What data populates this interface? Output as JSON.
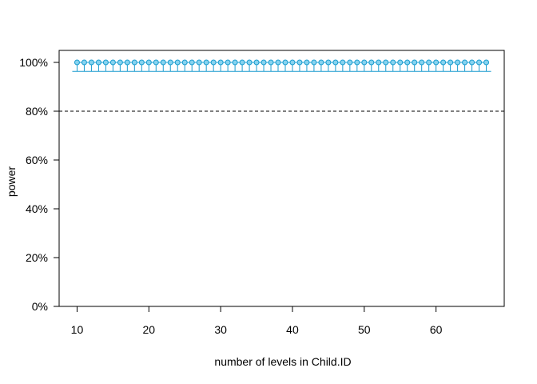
{
  "chart_data": {
    "type": "scatter",
    "title": "",
    "xlabel": "number of levels in Child.ID",
    "ylabel": "power",
    "xlim": [
      10,
      67
    ],
    "ylim": [
      0,
      100
    ],
    "x_ticks": [
      10,
      20,
      30,
      40,
      50,
      60
    ],
    "y_ticks": [
      "0%",
      "20%",
      "40%",
      "60%",
      "80%",
      "100%"
    ],
    "reference_line": {
      "y": 80,
      "style": "dashed"
    },
    "series": [
      {
        "x": [
          10,
          11,
          12,
          13,
          14,
          15,
          16,
          17,
          18,
          19,
          20,
          21,
          22,
          23,
          24,
          25,
          26,
          27,
          28,
          29,
          30,
          31,
          32,
          33,
          34,
          35,
          36,
          37,
          38,
          39,
          40,
          41,
          42,
          43,
          44,
          45,
          46,
          47,
          48,
          49,
          50,
          51,
          52,
          53,
          54,
          55,
          56,
          57,
          58,
          59,
          60,
          61,
          62,
          63,
          64,
          65,
          66,
          67
        ],
        "values": [
          100,
          100,
          100,
          100,
          100,
          100,
          100,
          100,
          100,
          100,
          100,
          100,
          100,
          100,
          100,
          100,
          100,
          100,
          100,
          100,
          100,
          100,
          100,
          100,
          100,
          100,
          100,
          100,
          100,
          100,
          100,
          100,
          100,
          100,
          100,
          100,
          100,
          100,
          100,
          100,
          100,
          100,
          100,
          100,
          100,
          100,
          100,
          100,
          100,
          100,
          100,
          100,
          100,
          100,
          100,
          100,
          100,
          100
        ],
        "ci_lower": [
          96.3,
          96.3,
          96.3,
          96.3,
          96.3,
          96.3,
          96.3,
          96.3,
          96.3,
          96.3,
          96.3,
          96.3,
          96.3,
          96.3,
          96.3,
          96.3,
          96.3,
          96.3,
          96.3,
          96.3,
          96.3,
          96.3,
          96.3,
          96.3,
          96.3,
          96.3,
          96.3,
          96.3,
          96.3,
          96.3,
          96.3,
          96.3,
          96.3,
          96.3,
          96.3,
          96.3,
          96.3,
          96.3,
          96.3,
          96.3,
          96.3,
          96.3,
          96.3,
          96.3,
          96.3,
          96.3,
          96.3,
          96.3,
          96.3,
          96.3,
          96.3,
          96.3,
          96.3,
          96.3,
          96.3,
          96.3,
          96.3,
          96.3
        ],
        "ci_upper": [
          100,
          100,
          100,
          100,
          100,
          100,
          100,
          100,
          100,
          100,
          100,
          100,
          100,
          100,
          100,
          100,
          100,
          100,
          100,
          100,
          100,
          100,
          100,
          100,
          100,
          100,
          100,
          100,
          100,
          100,
          100,
          100,
          100,
          100,
          100,
          100,
          100,
          100,
          100,
          100,
          100,
          100,
          100,
          100,
          100,
          100,
          100,
          100,
          100,
          100,
          100,
          100,
          100,
          100,
          100,
          100,
          100,
          100
        ]
      }
    ],
    "grid": false,
    "colors": {
      "line": "#1a9ccf",
      "point_fill": "#87d3ef",
      "point_stroke": "#1a9ccf",
      "reference": "#000000"
    }
  }
}
